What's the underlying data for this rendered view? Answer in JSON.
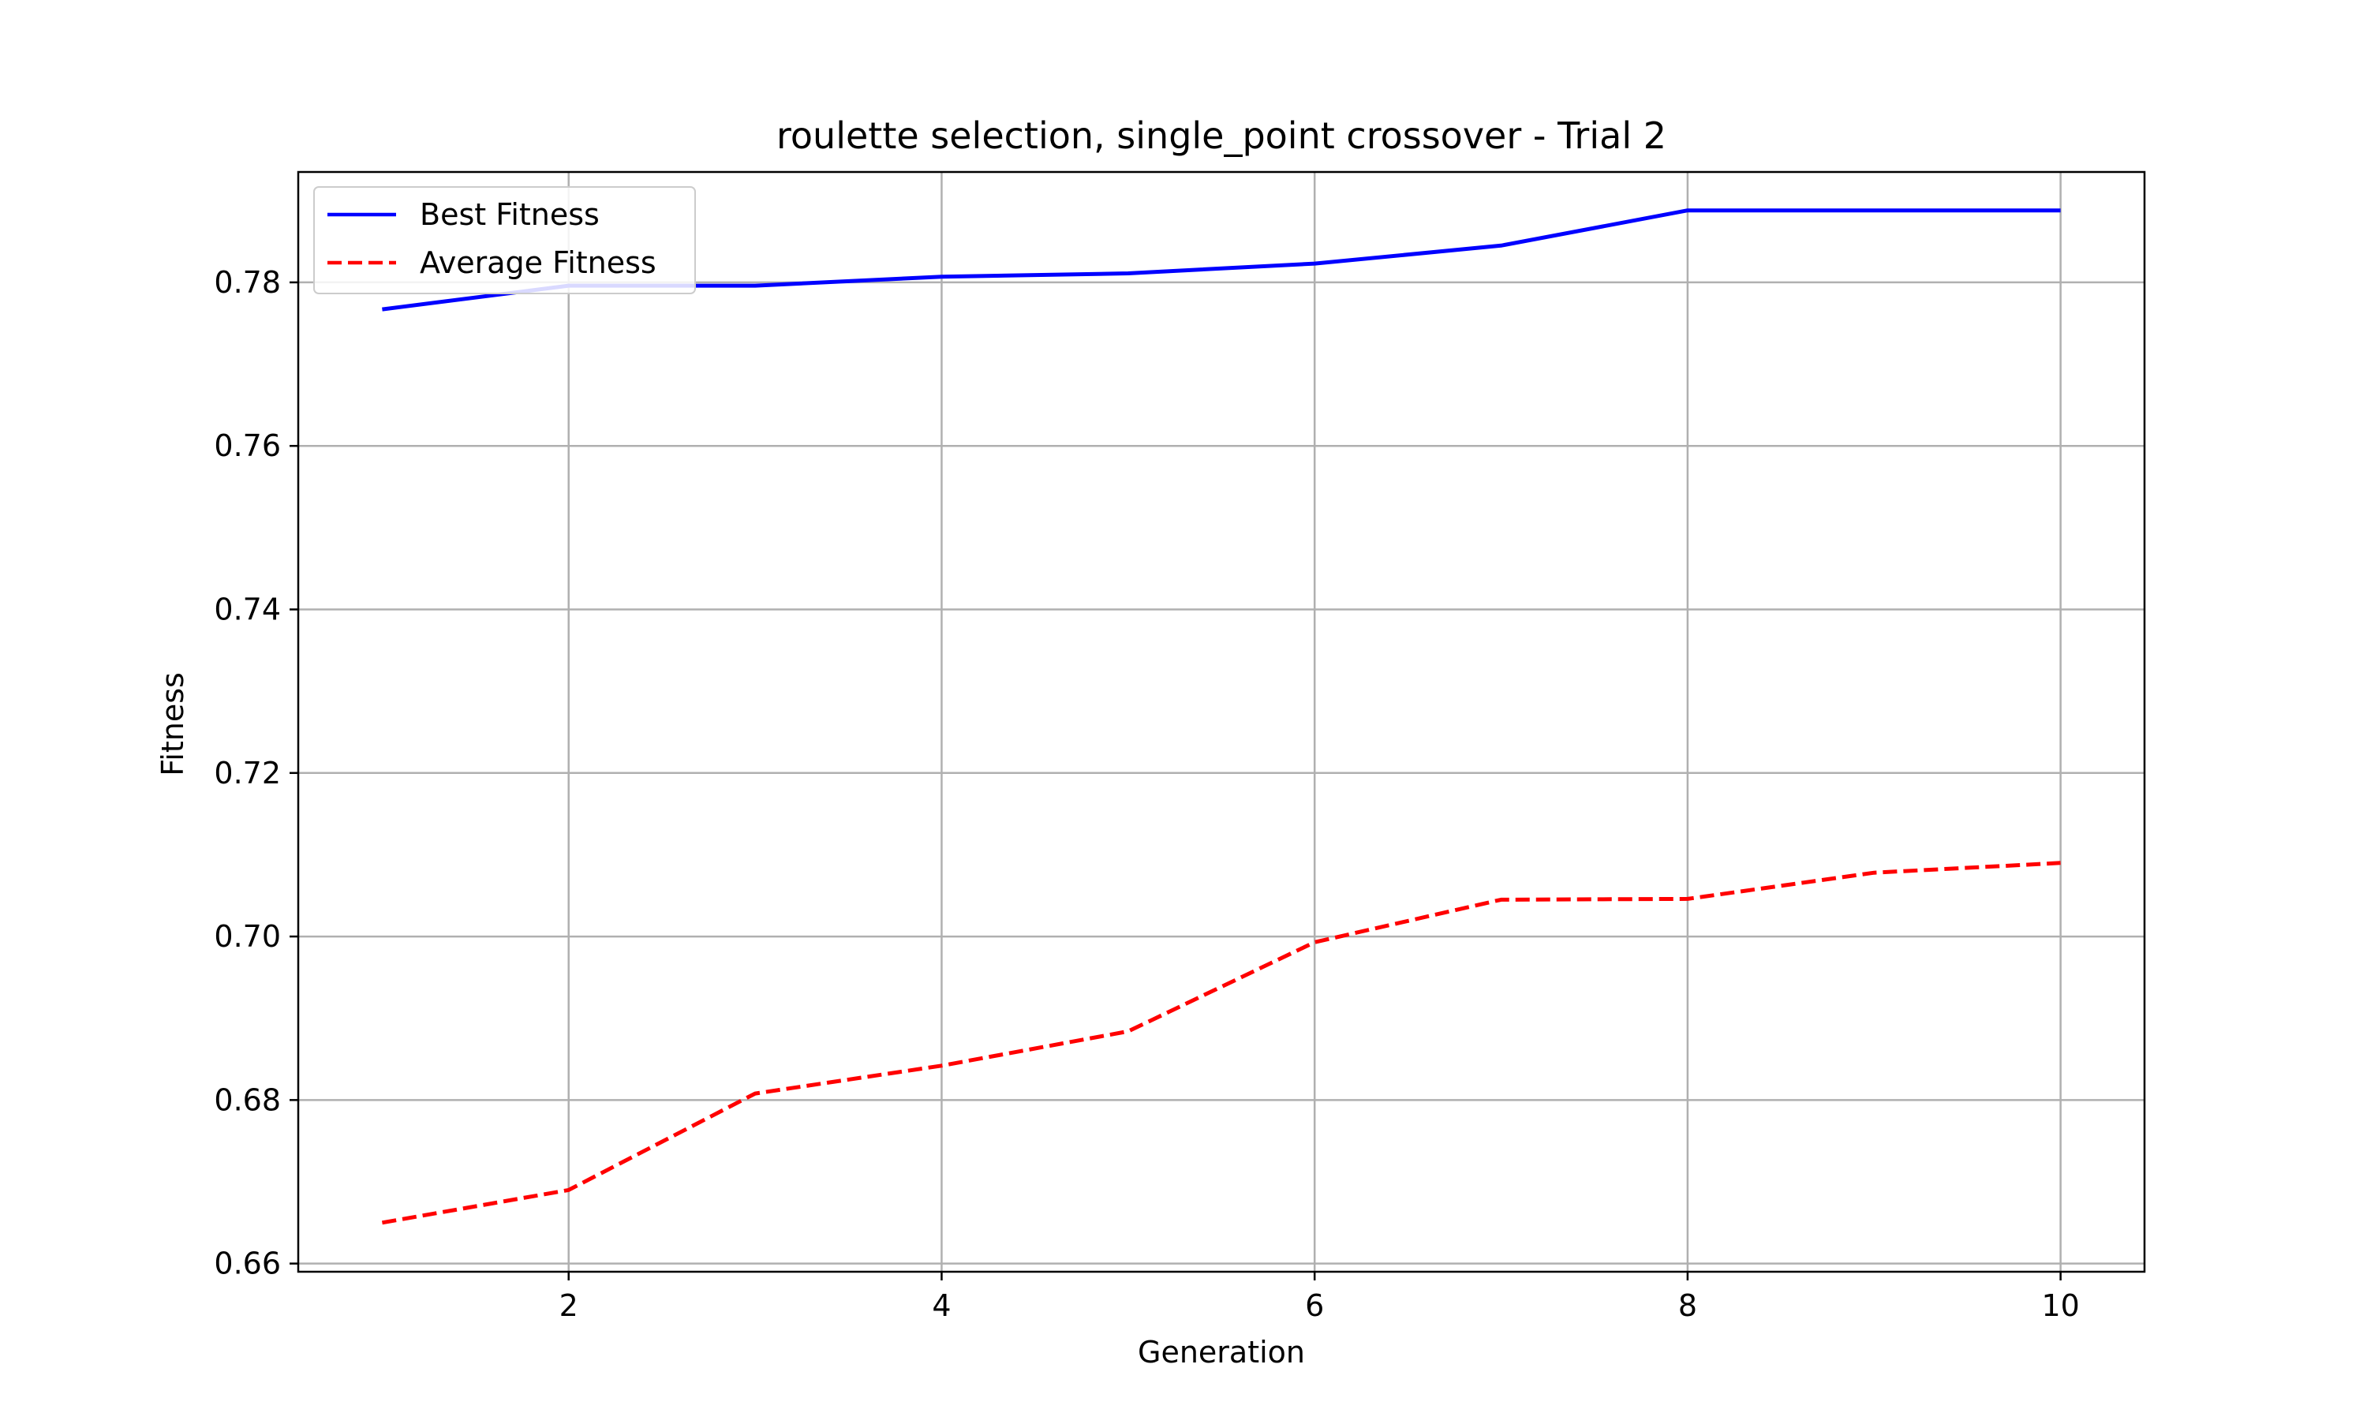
{
  "chart_data": {
    "type": "line",
    "title": "roulette selection, single_point crossover - Trial 2",
    "xlabel": "Generation",
    "ylabel": "Fitness",
    "x": [
      1,
      2,
      3,
      4,
      5,
      6,
      7,
      8,
      9,
      10
    ],
    "xlim": [
      0.55,
      10.45
    ],
    "ylim": [
      0.659,
      0.7935
    ],
    "xticks": [
      2,
      4,
      6,
      8,
      10
    ],
    "xtick_labels": [
      "2",
      "4",
      "6",
      "8",
      "10"
    ],
    "yticks": [
      0.66,
      0.68,
      0.7,
      0.72,
      0.74,
      0.76,
      0.78
    ],
    "ytick_labels": [
      "0.66",
      "0.68",
      "0.70",
      "0.72",
      "0.74",
      "0.76",
      "0.78"
    ],
    "grid": true,
    "legend_position": "top-left",
    "series": [
      {
        "name": "Best Fitness",
        "color": "#0000ff",
        "style": "solid",
        "values": [
          0.7767,
          0.7796,
          0.7796,
          0.7807,
          0.7811,
          0.7823,
          0.7845,
          0.7888,
          0.7888,
          0.7888
        ]
      },
      {
        "name": "Average Fitness",
        "color": "#ff0000",
        "style": "dashed",
        "values": [
          0.665,
          0.669,
          0.6808,
          0.6842,
          0.6884,
          0.6993,
          0.7045,
          0.7046,
          0.7078,
          0.709
        ]
      }
    ]
  }
}
